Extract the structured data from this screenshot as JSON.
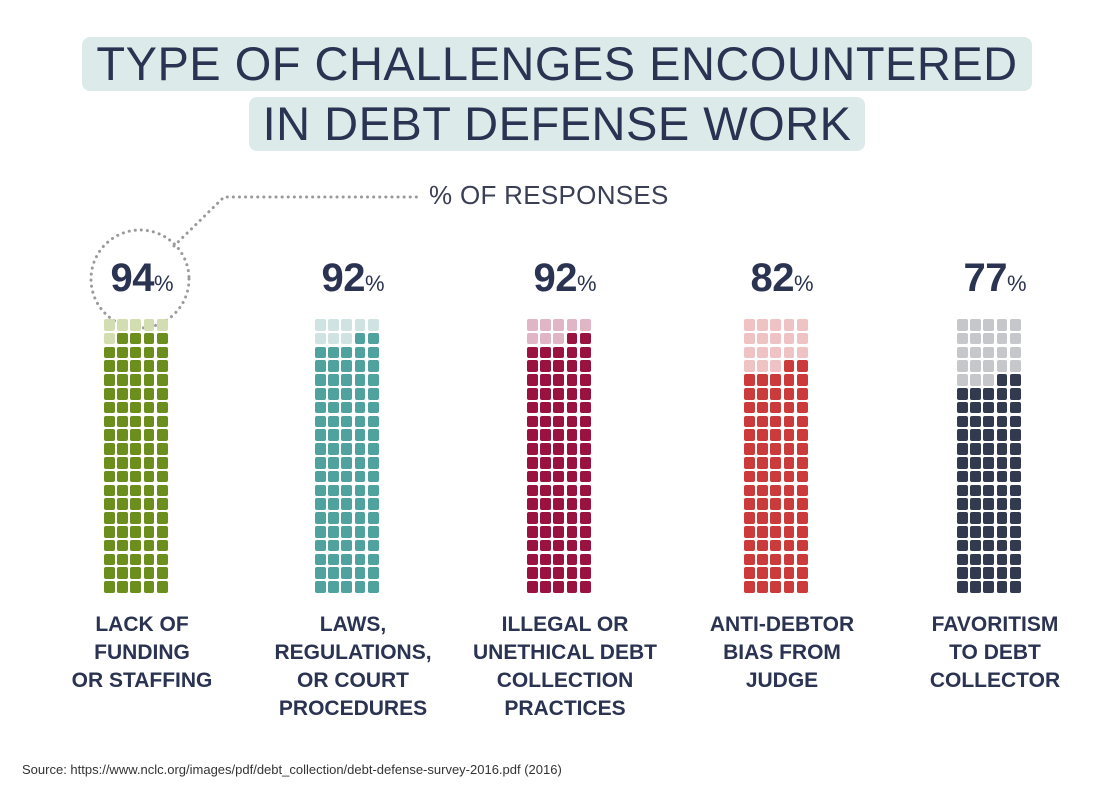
{
  "header": {
    "title_line1": "TYPE OF CHALLENGES ENCOUNTERED",
    "title_line2": "IN DEBT DEFENSE WORK",
    "subtitle": "% OF RESPONSES"
  },
  "source": "Source: https://www.nclc.org/images/pdf/debt_collection/debt-defense-survey-2016.pdf (2016)",
  "chart_data": {
    "type": "bar",
    "title": "TYPE OF CHALLENGES ENCOUNTERED IN DEBT DEFENSE WORK",
    "subtitle": "% OF RESPONSES",
    "categories": [
      [
        "LACK OF",
        "FUNDING",
        "OR STAFFING"
      ],
      [
        "LAWS,",
        "REGULATIONS,",
        "OR COURT",
        "PROCEDURES"
      ],
      [
        "ILLEGAL OR",
        "UNETHICAL DEBT",
        "COLLECTION",
        "PRACTICES"
      ],
      [
        "ANTI-DEBTOR",
        "BIAS FROM",
        "JUDGE"
      ],
      [
        "FAVORITISM",
        "TO DEBT",
        "COLLECTOR"
      ]
    ],
    "values": [
      94,
      92,
      92,
      82,
      77
    ],
    "value_suffix": "%",
    "ylim": [
      0,
      100
    ],
    "colors": {
      "filled": [
        "#6b8e1d",
        "#4fa29e",
        "#9a1240",
        "#cc3b3b",
        "#323a50"
      ],
      "empty": [
        "#d2ddb1",
        "#cfe3e2",
        "#e0b6c6",
        "#efc3c3",
        "#c6c7cb"
      ]
    }
  }
}
